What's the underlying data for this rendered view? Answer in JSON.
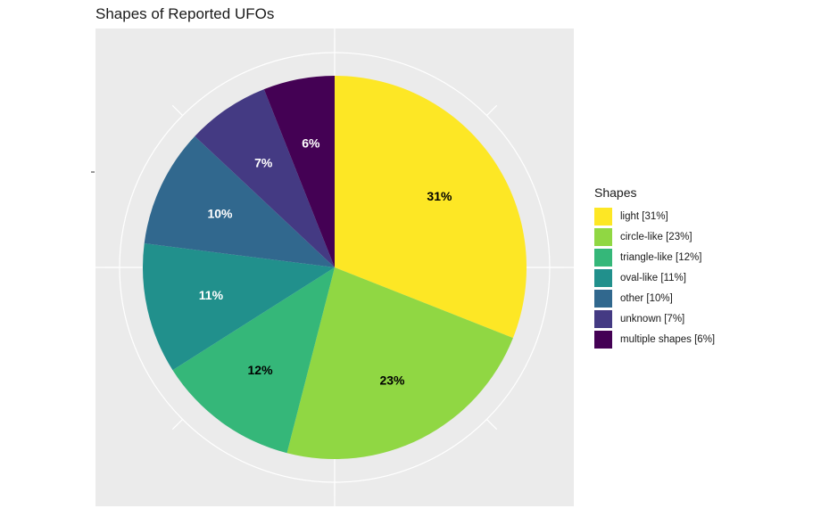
{
  "chart_data": {
    "type": "pie",
    "title": "Shapes of Reported UFOs",
    "legend_title": "Shapes",
    "legend_position": "right",
    "slices": [
      {
        "category": "light",
        "legend": "light [31%]",
        "value": 31,
        "label": "31%",
        "color": "#FDE725",
        "label_color": "#000000"
      },
      {
        "category": "circle-like",
        "legend": "circle-like [23%]",
        "value": 23,
        "label": "23%",
        "color": "#90D743",
        "label_color": "#000000"
      },
      {
        "category": "triangle-like",
        "legend": "triangle-like [12%]",
        "value": 12,
        "label": "12%",
        "color": "#35B779",
        "label_color": "#000000"
      },
      {
        "category": "oval-like",
        "legend": "oval-like [11%]",
        "value": 11,
        "label": "11%",
        "color": "#21908C",
        "label_color": "#ffffff"
      },
      {
        "category": "other",
        "legend": "other [10%]",
        "value": 10,
        "label": "10%",
        "color": "#31688E",
        "label_color": "#ffffff"
      },
      {
        "category": "unknown",
        "legend": "unknown [7%]",
        "value": 7,
        "label": "7%",
        "color": "#443A83",
        "label_color": "#ffffff"
      },
      {
        "category": "multiple shapes",
        "legend": "multiple shapes [6%]",
        "value": 6,
        "label": "6%",
        "color": "#440154",
        "label_color": "#ffffff"
      }
    ]
  }
}
